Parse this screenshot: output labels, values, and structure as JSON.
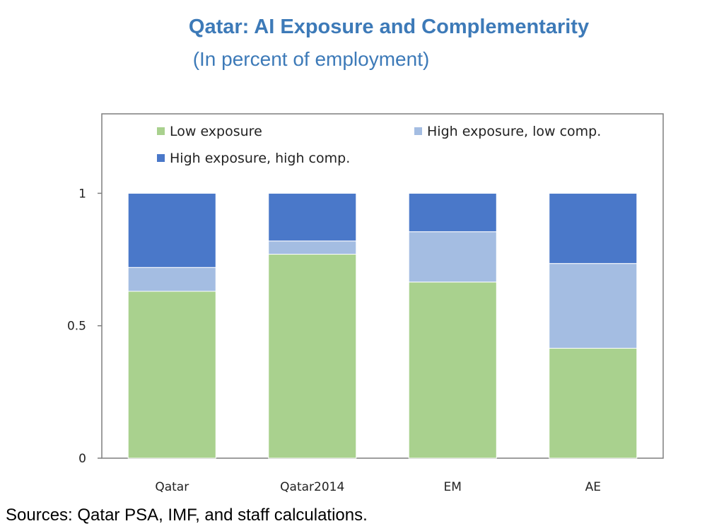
{
  "chart_data": {
    "type": "bar",
    "stacked": true,
    "title": "Qatar: AI Exposure and Complementarity",
    "subtitle": "(In percent of employment)",
    "categories": [
      "Qatar",
      "Qatar2014",
      "EM",
      "AE"
    ],
    "series": [
      {
        "name": "Low exposure",
        "color": "#a9d18e",
        "values": [
          0.63,
          0.77,
          0.665,
          0.415
        ]
      },
      {
        "name": "High exposure, low comp.",
        "color": "#a4bde2",
        "values": [
          0.09,
          0.05,
          0.19,
          0.32
        ]
      },
      {
        "name": "High exposure, high comp.",
        "color": "#4a78c9",
        "values": [
          0.28,
          0.18,
          0.145,
          0.265
        ]
      }
    ],
    "yticks": [
      "0",
      "0.5",
      "1"
    ],
    "ylim": [
      0,
      1.3
    ],
    "legend_position": "top",
    "grid": false,
    "xlabel": "",
    "ylabel": ""
  },
  "source_note": "Sources: Qatar PSA, IMF, and staff calculations."
}
